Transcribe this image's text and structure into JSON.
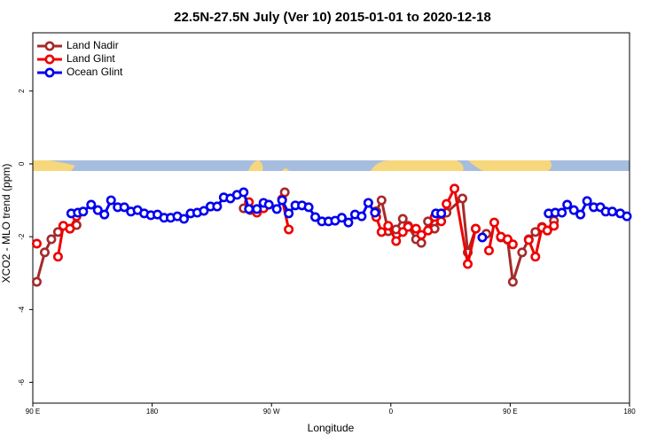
{
  "chart_data": {
    "type": "line",
    "title": "22.5N-27.5N July (Ver 10)   2015-01-01 to 2020-12-18",
    "x_label": "Longitude",
    "y_label": "XCO2 - MLO trend (ppm)",
    "xlim": [
      90,
      540
    ],
    "ylim": [
      -6.57,
      3.6
    ],
    "xticks": [
      {
        "value": 90,
        "label": "90 E"
      },
      180,
      {
        "value": 270,
        "label": "90 W"
      },
      {
        "value": 360,
        "label": "0"
      },
      {
        "value": 450,
        "label": "90 E"
      },
      {
        "value": 540,
        "label": "180"
      }
    ],
    "yticks": [
      -6,
      -4,
      -2,
      0,
      2
    ],
    "grid": false,
    "legend": "top-left",
    "series": [
      {
        "name": "Land Nadir",
        "color": "#a52a2a",
        "x": [
          93,
          99,
          104,
          109,
          113,
          118,
          123,
          180,
          249,
          254,
          268,
          280,
          300,
          349,
          353,
          358,
          364,
          369,
          373,
          379,
          383,
          388,
          393,
          398,
          402,
          414,
          418,
          424,
          429,
          432,
          437,
          443,
          448,
          452,
          459,
          464,
          469,
          474,
          478,
          483
        ],
        "values": [
          -3.24,
          -2.43,
          -2.07,
          -1.87,
          -1.7,
          -1.78,
          -1.68,
          null,
          -1.22,
          -1.27,
          null,
          -0.78,
          null,
          -1.3,
          -1.0,
          -1.85,
          -1.8,
          -1.51,
          -1.7,
          -2.07,
          -2.17,
          -1.58,
          -1.78,
          -1.41,
          -1.34,
          -0.95,
          -2.43,
          -1.78,
          null,
          -1.92,
          null,
          -2.02,
          -2.08,
          -3.24,
          -2.43,
          -2.07,
          -1.87,
          -1.73,
          -1.83,
          -1.56
        ]
      },
      {
        "name": "Land Glint",
        "color": "#ee0000",
        "x": [
          93,
          100,
          109,
          113,
          118,
          123,
          200,
          253,
          259,
          264,
          270,
          278,
          283,
          320,
          349,
          353,
          358,
          364,
          369,
          373,
          379,
          383,
          388,
          393,
          398,
          402,
          408,
          418,
          424,
          428,
          434,
          438,
          443,
          448,
          452,
          456,
          464,
          469,
          474,
          478,
          483
        ],
        "values": [
          -2.19,
          null,
          -2.55,
          -1.7,
          -1.78,
          -1.44,
          null,
          -1.05,
          -1.34,
          -1.22,
          null,
          -0.97,
          -1.8,
          null,
          -1.46,
          -1.87,
          -1.7,
          -2.12,
          -1.87,
          -1.73,
          -1.78,
          -1.95,
          -1.83,
          -1.46,
          -1.58,
          -1.1,
          -0.68,
          -2.75,
          -1.78,
          null,
          -2.38,
          -1.61,
          -2.0,
          -2.07,
          -2.21,
          null,
          -2.09,
          -2.55,
          -1.75,
          -1.83,
          -1.7
        ]
      },
      {
        "name": "Ocean Glint",
        "color": "#0000ee",
        "x": [
          119,
          124,
          128,
          134,
          139,
          144,
          149,
          154,
          159,
          164,
          169,
          174,
          179,
          184,
          189,
          194,
          199,
          204,
          209,
          214,
          219,
          224,
          229,
          234,
          239,
          244,
          249,
          253,
          259,
          264,
          268,
          274,
          278,
          283,
          288,
          293,
          298,
          303,
          308,
          313,
          318,
          323,
          328,
          333,
          338,
          343,
          348,
          370,
          394,
          398,
          420,
          429,
          450,
          479,
          484,
          489,
          493,
          498,
          503,
          508,
          513,
          518,
          522,
          527,
          533,
          538
        ],
        "values": [
          -1.36,
          -1.34,
          -1.31,
          -1.12,
          -1.27,
          -1.39,
          -1.0,
          -1.19,
          -1.19,
          -1.31,
          -1.27,
          -1.36,
          -1.41,
          -1.39,
          -1.48,
          -1.48,
          -1.44,
          -1.51,
          -1.36,
          -1.34,
          -1.29,
          -1.17,
          -1.17,
          -0.92,
          -0.95,
          -0.85,
          -0.78,
          -1.24,
          -1.24,
          -1.07,
          -1.12,
          -1.24,
          -1.0,
          -1.36,
          -1.14,
          -1.14,
          -1.19,
          -1.46,
          -1.58,
          -1.58,
          -1.56,
          -1.48,
          -1.61,
          -1.39,
          -1.44,
          -1.07,
          -1.34,
          null,
          -1.36,
          -1.36,
          null,
          -2.02,
          null,
          -1.36,
          -1.34,
          -1.34,
          -1.12,
          -1.27,
          -1.39,
          -1.02,
          -1.19,
          -1.19,
          -1.31,
          -1.31,
          -1.36,
          -1.44
        ]
      }
    ]
  }
}
